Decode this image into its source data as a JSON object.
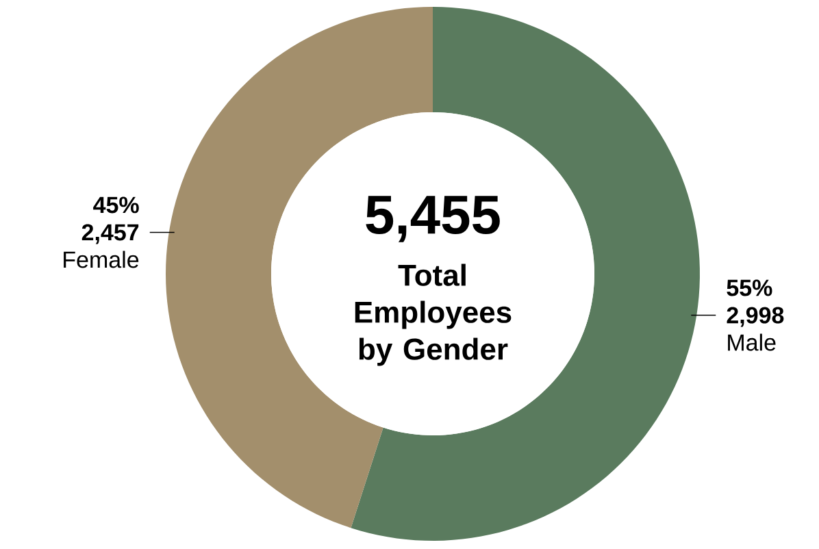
{
  "chart_data": {
    "type": "donut",
    "title": "5,455",
    "subtitle": "Total Employees by Gender",
    "categories": [
      "Male",
      "Female"
    ],
    "values": [
      2998,
      2457
    ],
    "colors": [
      "#5a7b5e",
      "#a38f6c"
    ],
    "value_labels": [
      "2,998",
      "2,457"
    ],
    "annotations": [
      "55%",
      "45%"
    ]
  }
}
